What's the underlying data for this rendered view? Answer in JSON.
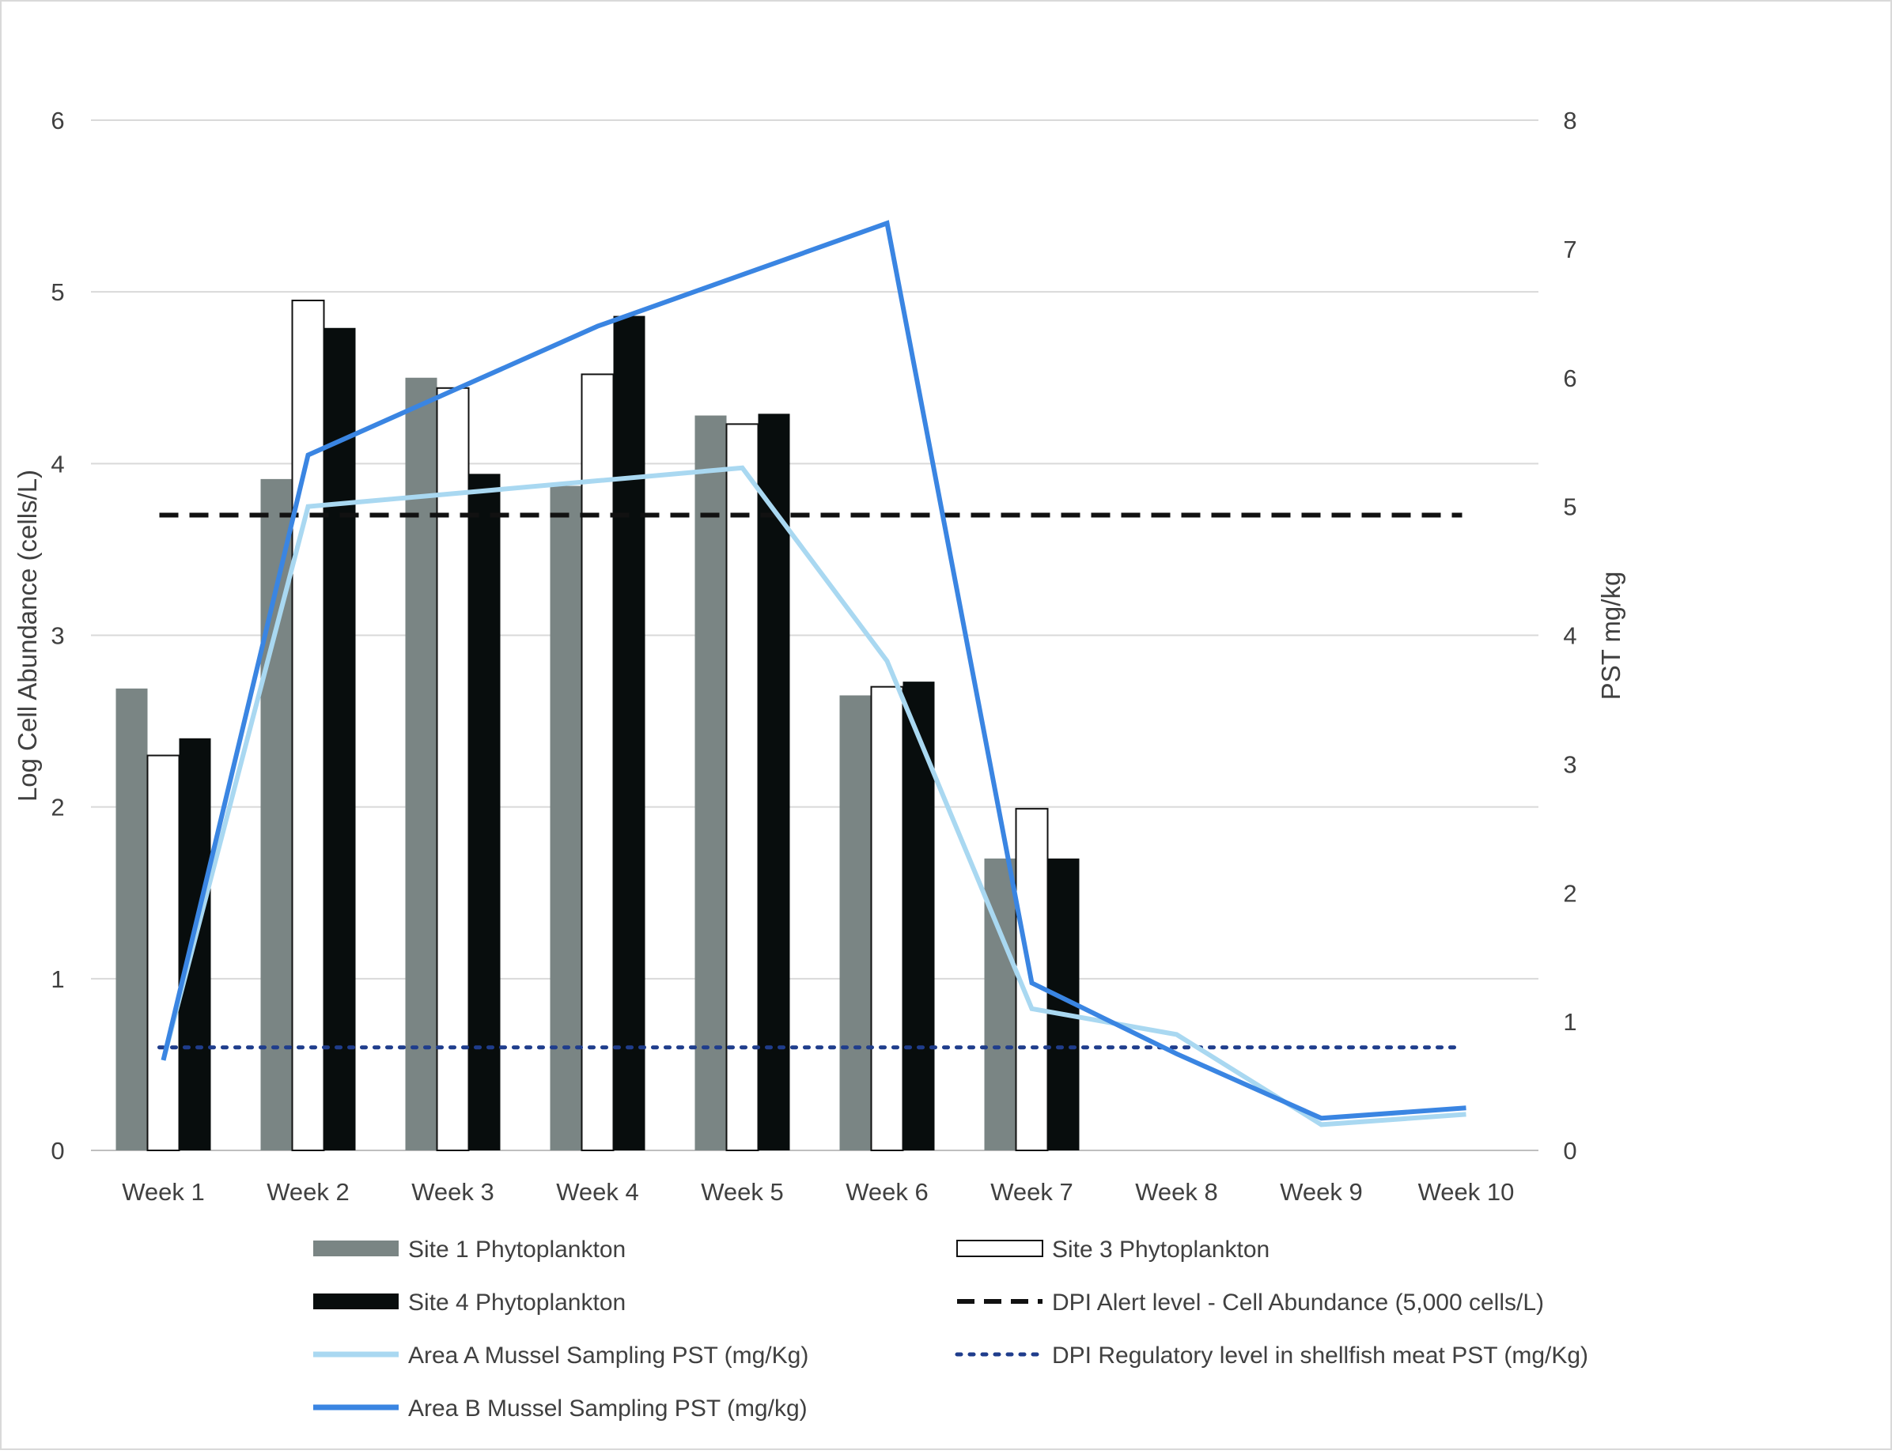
{
  "chart_data": {
    "type": "bar",
    "categories": [
      "Week 1",
      "Week 2",
      "Week 3",
      "Week 4",
      "Week 5",
      "Week 6",
      "Week 7",
      "Week 8",
      "Week 9",
      "Week 10"
    ],
    "ylabel": "Log Cell Abundance (cells/L)",
    "y2label": "PST mg/kg",
    "ylim": [
      0,
      6
    ],
    "y2lim": [
      0,
      8
    ],
    "yticks": [
      "0",
      "1",
      "2",
      "3",
      "4",
      "5",
      "6"
    ],
    "y2ticks": [
      "0",
      "1",
      "2",
      "3",
      "4",
      "5",
      "6",
      "7",
      "8"
    ],
    "grid": true,
    "legend_position": "bottom",
    "bar_series": [
      {
        "name": "Site 1 Phytoplankton",
        "color": "#7a8584",
        "values": [
          2.69,
          3.91,
          4.5,
          3.87,
          4.28,
          2.65,
          1.7,
          null,
          null,
          null
        ]
      },
      {
        "name": "Site 3 Phytoplankton",
        "color": "#ffffff",
        "values": [
          2.3,
          4.95,
          4.44,
          4.52,
          4.23,
          2.7,
          1.99,
          null,
          null,
          null
        ]
      },
      {
        "name": "Site 4 Phytoplankton",
        "color": "#080d0d",
        "values": [
          2.4,
          4.79,
          3.94,
          4.86,
          4.29,
          2.73,
          1.7,
          null,
          null,
          null
        ]
      }
    ],
    "line_series": [
      {
        "name": "Area A Mussel Sampling PST (mg/Kg)",
        "color": "#a9d8f1",
        "axis": "y2",
        "values": [
          0.7,
          5.0,
          5.1,
          5.2,
          5.3,
          3.8,
          1.1,
          0.9,
          0.2,
          0.28
        ]
      },
      {
        "name": "Area B Mussel Sampling PST (mg/kg)",
        "color": "#3a85e2",
        "axis": "y2",
        "values": [
          0.7,
          5.4,
          5.9,
          6.4,
          6.8,
          7.2,
          1.3,
          0.75,
          0.25,
          0.33
        ]
      }
    ],
    "reference_lines": [
      {
        "name": "DPI Alert level - Cell Abundance (5,000 cells/L)",
        "color": "#111111",
        "style": "dashed",
        "axis": "y",
        "value": 3.7
      },
      {
        "name": "DPI Regulatory level in shellfish meat PST  (mg/Kg)",
        "color": "#1f3d8c",
        "style": "dotted",
        "axis": "y2",
        "value": 0.8
      }
    ]
  }
}
